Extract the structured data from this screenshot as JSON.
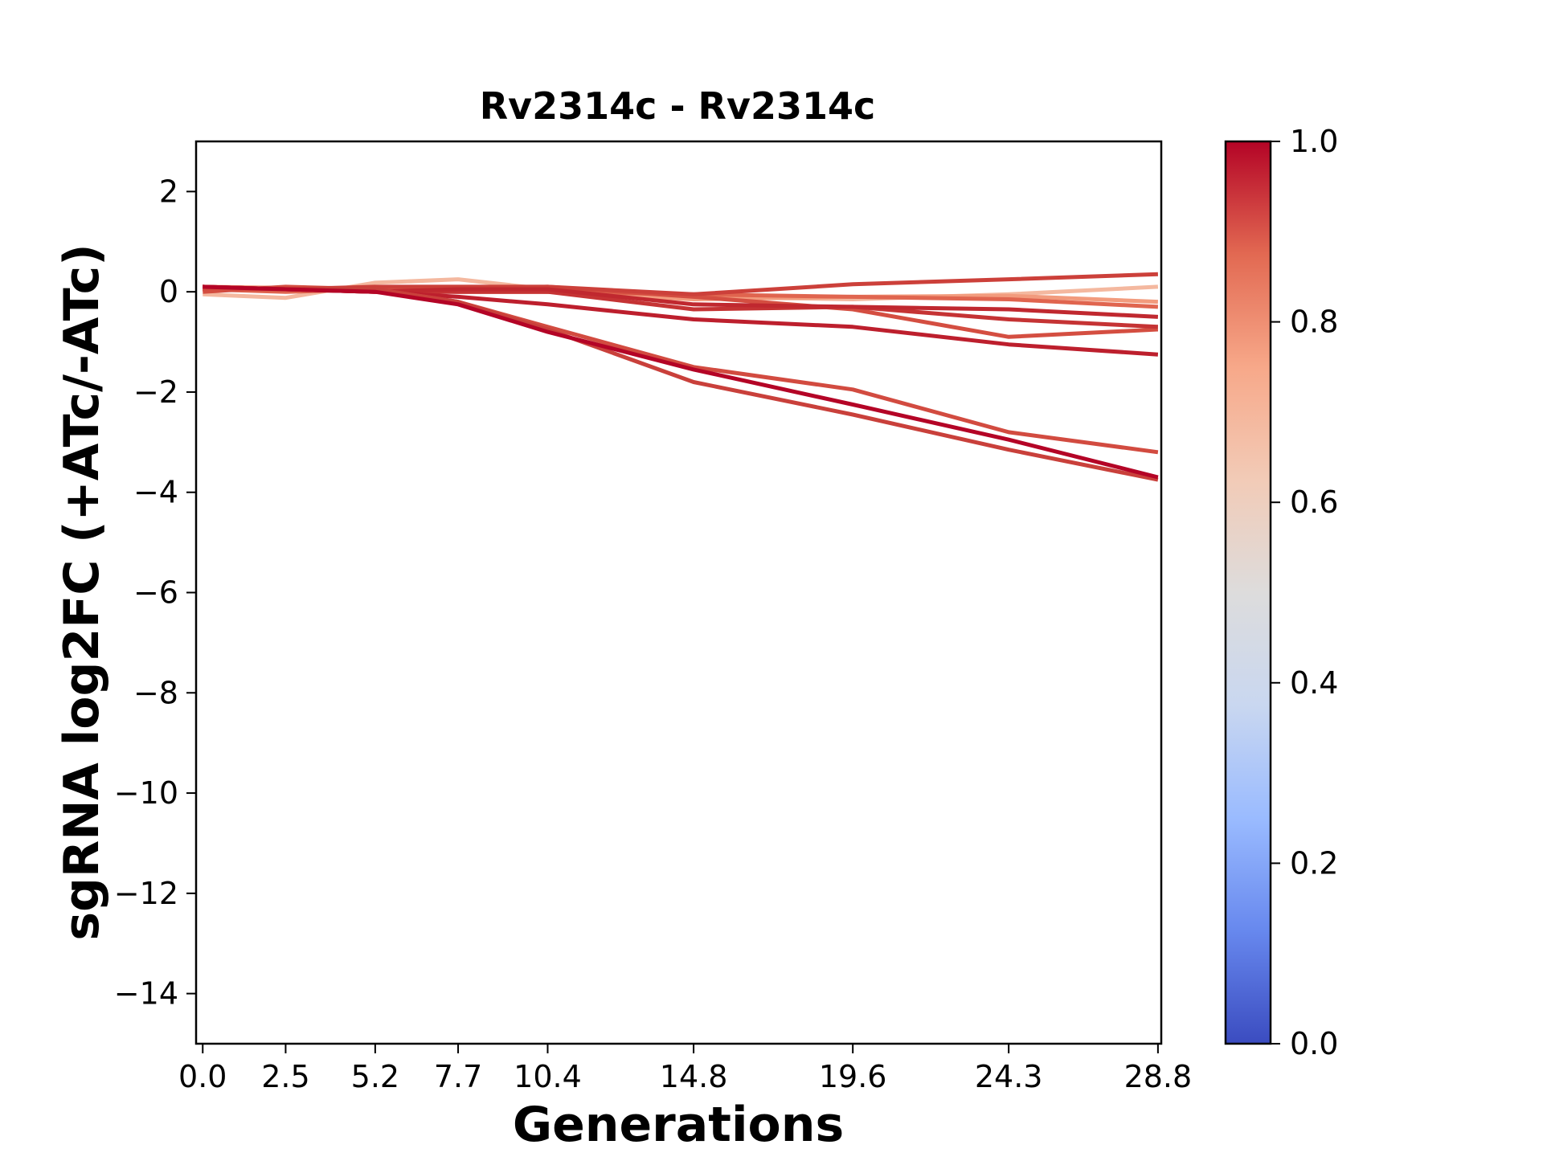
{
  "chart_data": {
    "type": "line",
    "title": "Rv2314c - Rv2314c",
    "xlabel": "Generations",
    "ylabel": "sgRNA log2FC (+ATc/-ATc)",
    "x": [
      0.0,
      2.5,
      5.2,
      7.7,
      10.4,
      14.8,
      19.6,
      24.3,
      28.8
    ],
    "x_tick_labels": [
      "0.0",
      "2.5",
      "5.2",
      "7.7",
      "10.4",
      "14.8",
      "19.6",
      "24.3",
      "28.8"
    ],
    "xlim": [
      -0.2,
      28.9
    ],
    "ylim": [
      -15,
      3
    ],
    "y_ticks": [
      2,
      0,
      -2,
      -4,
      -6,
      -8,
      -10,
      -12,
      -14
    ],
    "y_tick_labels": [
      "2",
      "0",
      "−2",
      "−4",
      "−6",
      "−8",
      "−10",
      "−12",
      "−14"
    ],
    "grid": false,
    "colormap": "coolwarm",
    "colorbar": {
      "range": [
        0.0,
        1.0
      ],
      "ticks": [
        0.0,
        0.2,
        0.4,
        0.6,
        0.8,
        1.0
      ],
      "tick_labels": [
        "0.0",
        "0.2",
        "0.4",
        "0.6",
        "0.8",
        "1.0"
      ],
      "stops": [
        "#3b4cc0",
        "#6788ee",
        "#9abbff",
        "#c9d7f0",
        "#dddcdc",
        "#f2cbb7",
        "#f7a889",
        "#e26952",
        "#b40426"
      ]
    },
    "series": [
      {
        "color": "#f4b89f",
        "values": [
          -0.05,
          -0.12,
          0.18,
          0.25,
          0.05,
          -0.1,
          -0.15,
          -0.05,
          0.1
        ]
      },
      {
        "color": "#f29b7d",
        "values": [
          0.1,
          0.08,
          0.05,
          0.05,
          0.0,
          -0.15,
          -0.1,
          -0.08,
          -0.2
        ]
      },
      {
        "color": "#e0654f",
        "values": [
          0.05,
          0.0,
          0.05,
          0.0,
          0.0,
          -0.05,
          -0.1,
          -0.15,
          -0.3
        ]
      },
      {
        "color": "#d44e41",
        "values": [
          0.0,
          0.1,
          0.05,
          0.05,
          0.1,
          -0.1,
          -0.35,
          -0.9,
          -0.75
        ]
      },
      {
        "color": "#cc403a",
        "values": [
          0.1,
          0.05,
          0.1,
          0.1,
          0.1,
          -0.05,
          0.15,
          0.25,
          0.35
        ]
      },
      {
        "color": "#c53334",
        "values": [
          0.1,
          0.05,
          0.0,
          0.0,
          0.0,
          -0.35,
          -0.3,
          -0.55,
          -0.7
        ]
      },
      {
        "color": "#c0282f",
        "values": [
          0.05,
          0.05,
          0.0,
          0.05,
          0.05,
          -0.25,
          -0.3,
          -0.35,
          -0.5
        ]
      },
      {
        "color": "#bd1f2d",
        "values": [
          0.1,
          0.05,
          0.0,
          -0.1,
          -0.25,
          -0.55,
          -0.7,
          -1.05,
          -1.25
        ]
      },
      {
        "color": "#d24b40",
        "values": [
          0.05,
          0.05,
          0.05,
          -0.2,
          -0.7,
          -1.5,
          -1.95,
          -2.8,
          -3.2
        ]
      },
      {
        "color": "#c9403b",
        "values": [
          0.1,
          0.05,
          0.05,
          -0.2,
          -0.75,
          -1.8,
          -2.45,
          -3.15,
          -3.75
        ]
      },
      {
        "color": "#b40426",
        "values": [
          0.1,
          0.05,
          0.0,
          -0.25,
          -0.8,
          -1.55,
          -2.25,
          -2.95,
          -3.7
        ]
      }
    ]
  }
}
